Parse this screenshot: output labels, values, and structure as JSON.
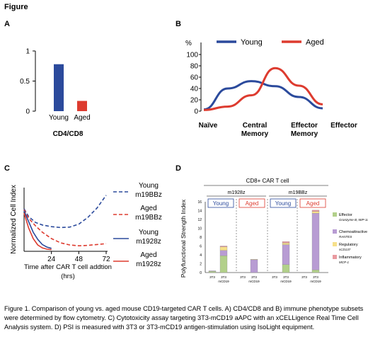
{
  "figure_label": "Figure",
  "caption": "Figure 1.  Comparison of young vs. aged mouse CD19-targeted CAR T cells.  A)  CD4/CD8 and B) immune phenotype subsets were determined by flow cytometry.  C)  Cytotoxicity assay targeting 3T3-mCD19 aAPC with an xCELLigence Real Time Cell Analysis system.  D)  PSI is measured with 3T3 or 3T3-mCD19 antigen-stimulation using IsoLight equipment.",
  "colors": {
    "young": "#2b4a9c",
    "aged": "#dd3b2f",
    "effector": "#b2d08a",
    "chemo": "#b89cd3",
    "regulatory": "#f6e08a",
    "inflammatory": "#e99aa0"
  },
  "chart_data": [
    {
      "panel": "A",
      "type": "bar",
      "categories": [
        "Young",
        "Aged"
      ],
      "values": [
        0.78,
        0.17
      ],
      "xlabel": "CD4/CD8",
      "ylim": [
        0,
        1
      ],
      "yticks": [
        "1",
        "0.5",
        "0"
      ],
      "grid": false
    },
    {
      "panel": "B",
      "type": "line",
      "categories": [
        "Naïve",
        "Central Memory",
        "Effector Memory",
        "Effector"
      ],
      "ylabel": "%",
      "ylim": [
        0,
        100
      ],
      "yticks": [
        "0",
        "20",
        "40",
        "60",
        "80",
        "100"
      ],
      "series": [
        {
          "name": "Young",
          "x": [
            0,
            0.6,
            1.2,
            1.8,
            2.4,
            3.0
          ],
          "values": [
            3,
            40,
            53,
            44,
            25,
            5
          ]
        },
        {
          "name": "Aged",
          "x": [
            0,
            0.6,
            1.2,
            1.8,
            2.4,
            3.0
          ],
          "values": [
            2,
            8,
            28,
            76,
            45,
            12
          ]
        }
      ],
      "legend": "top",
      "grid": false
    },
    {
      "panel": "C",
      "type": "line",
      "xlabel": "Time after CAR T cell addtion (hrs)",
      "ylabel": "Normalized Cell Index",
      "xlim": [
        0,
        72
      ],
      "ylim": [
        0,
        1.5
      ],
      "xticks": [
        "24",
        "48",
        "72"
      ],
      "series": [
        {
          "name": "Young m19BBz",
          "style": "dashed",
          "x": [
            0,
            4,
            10,
            16,
            24,
            32,
            40,
            48,
            56,
            64,
            72
          ],
          "values": [
            1.0,
            0.82,
            0.68,
            0.62,
            0.58,
            0.56,
            0.57,
            0.64,
            0.8,
            1.02,
            1.32
          ]
        },
        {
          "name": "Aged m19BBz",
          "style": "dashed",
          "x": [
            0,
            4,
            10,
            16,
            24,
            32,
            40,
            48,
            56,
            64,
            72
          ],
          "values": [
            0.98,
            0.78,
            0.6,
            0.45,
            0.3,
            0.2,
            0.15,
            0.13,
            0.14,
            0.16,
            0.18
          ]
        },
        {
          "name": "Young m1928z",
          "style": "solid",
          "x": [
            0,
            4,
            8,
            12,
            16,
            20,
            24
          ],
          "values": [
            0.95,
            0.7,
            0.45,
            0.28,
            0.16,
            0.1,
            0.07
          ]
        },
        {
          "name": "Aged m1928z",
          "style": "solid",
          "x": [
            0,
            4,
            8,
            12,
            16,
            20,
            24
          ],
          "values": [
            0.9,
            0.55,
            0.3,
            0.15,
            0.08,
            0.05,
            0.04
          ]
        }
      ],
      "legend": "right",
      "grid": false
    },
    {
      "panel": "D",
      "type": "bar",
      "title": "CD8+ CAR T cell",
      "ylabel": "Polyfunctional Strength Index",
      "ylim": [
        0,
        16
      ],
      "yticks": [
        "0",
        "2",
        "4",
        "6",
        "8",
        "10",
        "12",
        "14",
        "16"
      ],
      "groups": [
        "m1928z",
        "m19BBz"
      ],
      "subgroups": [
        "Young",
        "Aged",
        "Young",
        "Aged"
      ],
      "categories": [
        "3T3",
        "3T3 mCD19",
        "3T3",
        "3T3 mCD19",
        "3T3",
        "3T3 mCD19",
        "3T3",
        "3T3 mCD19"
      ],
      "series": [
        {
          "name": "Effector",
          "sub": "Granzyme B, MIP-1α",
          "values": [
            0.3,
            3.8,
            0,
            0,
            0,
            1.8,
            0,
            0.6
          ]
        },
        {
          "name": "Chemoattractive",
          "sub": "RANTES",
          "values": [
            0.1,
            1.2,
            0,
            2.9,
            0,
            4.5,
            0,
            12.8
          ]
        },
        {
          "name": "Regulatory",
          "sub": "sCD137",
          "values": [
            0,
            0.8,
            0,
            0.1,
            0,
            0.4,
            0,
            0.4
          ]
        },
        {
          "name": "Inflammatory",
          "sub": "MCP-1",
          "values": [
            0,
            0.2,
            0,
            0,
            0,
            0.3,
            0,
            0.3
          ]
        }
      ],
      "legend": "right",
      "grid": false
    }
  ]
}
